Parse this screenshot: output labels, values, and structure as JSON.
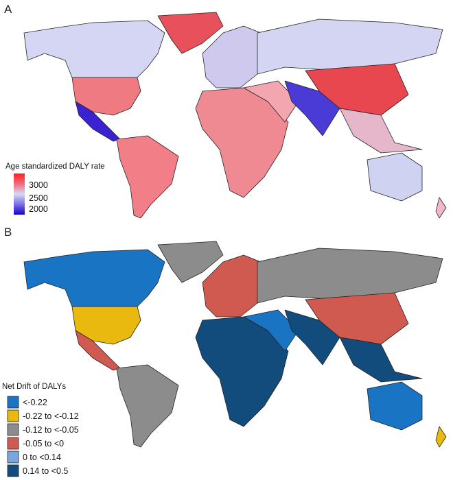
{
  "panel_a": {
    "label": "A",
    "legend": {
      "title": "Age standardized DALY rate",
      "ticks": [
        "3000",
        "2500",
        "2000"
      ],
      "gradient": [
        "#ff2020",
        "#f06a80",
        "#d8d8f4",
        "#7a6ee6",
        "#1400c8"
      ]
    },
    "region_colors": {
      "north-canada": "#d5d6f3",
      "usa": "#ef7a82",
      "mexico-central-america": "#3a22d0",
      "greenland": "#e8505c",
      "south-america": "#f27f87",
      "europe": "#cfc9ee",
      "africa": "#ef8a93",
      "middle-east": "#f3a6b0",
      "russia-north-asia": "#d3d5f3",
      "china-east-asia": "#e8474f",
      "south-asia": "#4b3bd6",
      "southeast-asia": "#e6b6ca",
      "australia": "#cfd2f1",
      "new-zealand": "#f0b8c8"
    }
  },
  "panel_b": {
    "label": "B",
    "legend": {
      "title": "Net Drift of DALYs",
      "items": [
        {
          "label": "<-0.22",
          "color": "#1a74c4"
        },
        {
          "label": "-0.22 to <-0.12",
          "color": "#e9b90f"
        },
        {
          "label": "-0.12 to <-0.05",
          "color": "#8c8c8c"
        },
        {
          "label": "-0.05 to <0",
          "color": "#d05a50"
        },
        {
          "label": "0 to <0.14",
          "color": "#7aa6e0"
        },
        {
          "label": "0.14 to <0.5",
          "color": "#124c7d"
        }
      ]
    },
    "region_colors": {
      "north-canada": "#1a74c4",
      "usa": "#e9b90f",
      "mexico-central-america": "#d05a50",
      "greenland": "#8c8c8c",
      "south-america": "#8c8c8c",
      "europe": "#d05a50",
      "africa": "#124c7d",
      "middle-east": "#1a74c4",
      "russia-north-asia": "#8c8c8c",
      "china-east-asia": "#d05a50",
      "south-asia": "#124c7d",
      "southeast-asia": "#124c7d",
      "australia": "#1a74c4",
      "new-zealand": "#e9b90f"
    }
  }
}
